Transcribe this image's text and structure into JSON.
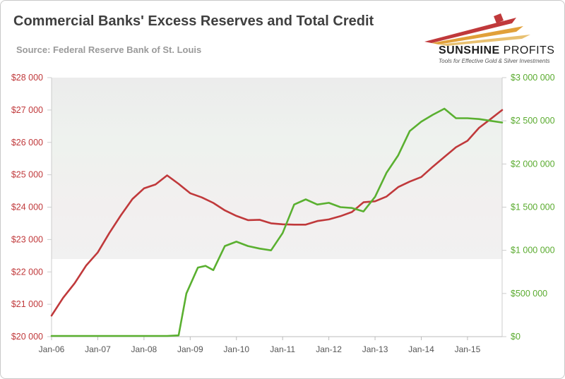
{
  "title": "Commercial Banks' Excess Reserves and Total Credit",
  "subtitle": "Source: Federal Reserve Bank of St. Louis",
  "logo": {
    "name_bold": "SUNSHINE",
    "name_light": "PROFITS",
    "tagline": "Tools for Effective Gold & Silver Investments"
  },
  "colors": {
    "credit": "#c0393b",
    "reserves": "#5ab030"
  },
  "chart_data": {
    "type": "line",
    "x_ticks": [
      "Jan-06",
      "Jan-07",
      "Jan-08",
      "Jan-09",
      "Jan-10",
      "Jan-11",
      "Jan-12",
      "Jan-13",
      "Jan-14",
      "Jan-15"
    ],
    "y_left": {
      "ticks": [
        "$20 000",
        "$21 000",
        "$22 000",
        "$23 000",
        "$24 000",
        "$25 000",
        "$26 000",
        "$27 000",
        "$28 000"
      ],
      "range": [
        20000,
        28000
      ]
    },
    "y_right": {
      "ticks": [
        "$0",
        "$500 000",
        "$1 000 000",
        "$1 500 000",
        "$2 000 000",
        "$2 500 000",
        "$3 000 000"
      ],
      "range": [
        0,
        3000000
      ]
    },
    "x_range": [
      "2006-01",
      "2015-10"
    ],
    "series": [
      {
        "axis": "left",
        "color": "#c0393b",
        "points": [
          [
            "2006-01",
            20650
          ],
          [
            "2006-04",
            21200
          ],
          [
            "2006-07",
            21650
          ],
          [
            "2006-10",
            22200
          ],
          [
            "2007-01",
            22600
          ],
          [
            "2007-04",
            23200
          ],
          [
            "2007-07",
            23750
          ],
          [
            "2007-10",
            24250
          ],
          [
            "2008-01",
            24580
          ],
          [
            "2008-04",
            24700
          ],
          [
            "2008-07",
            24980
          ],
          [
            "2008-10",
            24720
          ],
          [
            "2009-01",
            24430
          ],
          [
            "2009-04",
            24300
          ],
          [
            "2009-07",
            24130
          ],
          [
            "2009-10",
            23900
          ],
          [
            "2010-01",
            23730
          ],
          [
            "2010-04",
            23600
          ],
          [
            "2010-07",
            23610
          ],
          [
            "2010-10",
            23500
          ],
          [
            "2011-01",
            23470
          ],
          [
            "2011-04",
            23460
          ],
          [
            "2011-07",
            23460
          ],
          [
            "2011-10",
            23570
          ],
          [
            "2012-01",
            23620
          ],
          [
            "2012-04",
            23720
          ],
          [
            "2012-07",
            23850
          ],
          [
            "2012-10",
            24150
          ],
          [
            "2013-01",
            24180
          ],
          [
            "2013-04",
            24330
          ],
          [
            "2013-07",
            24620
          ],
          [
            "2013-10",
            24790
          ],
          [
            "2014-01",
            24930
          ],
          [
            "2014-04",
            25250
          ],
          [
            "2014-07",
            25550
          ],
          [
            "2014-10",
            25850
          ],
          [
            "2015-01",
            26050
          ],
          [
            "2015-04",
            26450
          ],
          [
            "2015-07",
            26720
          ],
          [
            "2015-10",
            27000
          ]
        ]
      },
      {
        "axis": "right",
        "color": "#5ab030",
        "points": [
          [
            "2006-01",
            8000
          ],
          [
            "2008-07",
            8000
          ],
          [
            "2008-10",
            15000
          ],
          [
            "2008-12",
            500000
          ],
          [
            "2009-03",
            800000
          ],
          [
            "2009-05",
            820000
          ],
          [
            "2009-07",
            770000
          ],
          [
            "2009-10",
            1050000
          ],
          [
            "2010-01",
            1100000
          ],
          [
            "2010-04",
            1050000
          ],
          [
            "2010-07",
            1020000
          ],
          [
            "2010-10",
            1000000
          ],
          [
            "2011-01",
            1200000
          ],
          [
            "2011-04",
            1530000
          ],
          [
            "2011-07",
            1590000
          ],
          [
            "2011-10",
            1530000
          ],
          [
            "2012-01",
            1550000
          ],
          [
            "2012-04",
            1500000
          ],
          [
            "2012-07",
            1490000
          ],
          [
            "2012-10",
            1450000
          ],
          [
            "2013-01",
            1620000
          ],
          [
            "2013-04",
            1900000
          ],
          [
            "2013-07",
            2100000
          ],
          [
            "2013-10",
            2380000
          ],
          [
            "2014-01",
            2490000
          ],
          [
            "2014-04",
            2570000
          ],
          [
            "2014-07",
            2640000
          ],
          [
            "2014-10",
            2530000
          ],
          [
            "2015-01",
            2530000
          ],
          [
            "2015-04",
            2520000
          ],
          [
            "2015-07",
            2500000
          ],
          [
            "2015-10",
            2480000
          ]
        ]
      }
    ],
    "grid": false
  }
}
